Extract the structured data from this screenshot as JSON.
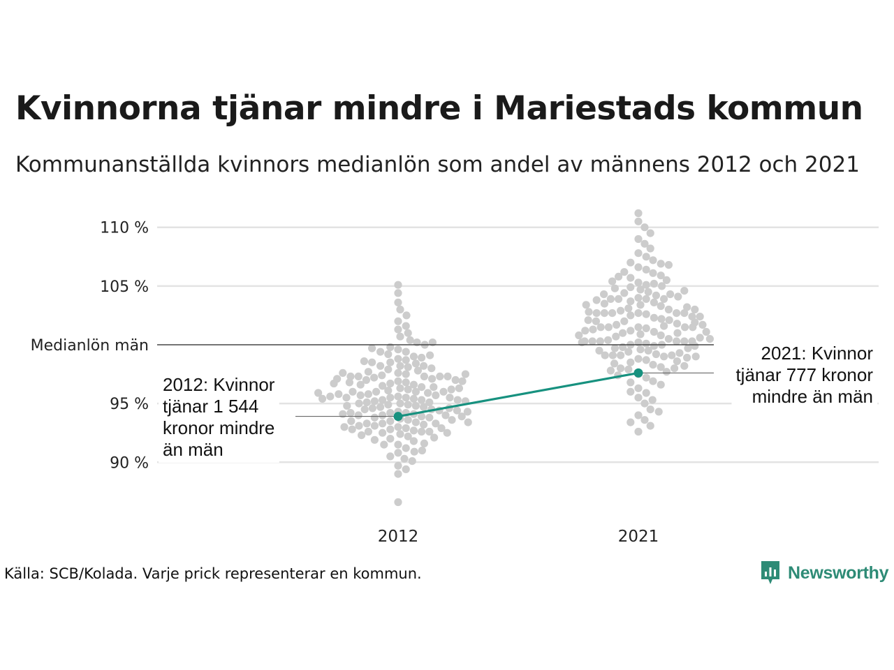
{
  "title": "Kvinnorna tjänar mindre i Mariestads kommun",
  "subtitle": "Kommunanställda kvinnors medianlön som andel av männens 2012 och 2021",
  "source": "Källa: SCB/Kolada. Varje prick representerar en kommun.",
  "brand": "Newsworthy",
  "colors": {
    "highlight": "#17917f",
    "dots": "#cccccc",
    "grid": "#e3e3e3",
    "reference": "#222222",
    "brand": "#2e8b76"
  },
  "chart_data": {
    "type": "scatter",
    "subtype": "beeswarm",
    "categories": [
      "2012",
      "2021"
    ],
    "y_ticks": [
      {
        "value": 90,
        "label": "90 %"
      },
      {
        "value": 95,
        "label": "95 %"
      },
      {
        "value": 100,
        "label": "Medianlön män"
      },
      {
        "value": 105,
        "label": "105 %"
      },
      {
        "value": 110,
        "label": "110 %"
      }
    ],
    "ylim": [
      86,
      111.5
    ],
    "reference_line": {
      "value": 100,
      "label": "Medianlön män"
    },
    "highlight": {
      "name": "Mariestads kommun",
      "values": [
        {
          "x": "2012",
          "y": 93.9
        },
        {
          "x": "2021",
          "y": 97.6
        }
      ]
    },
    "annotations": [
      {
        "x": "2012",
        "lines": [
          "2012: Kvinnor",
          "tjänar 1 544",
          "kronor mindre",
          "än män"
        ]
      },
      {
        "x": "2021",
        "lines": [
          "2021: Kvinnor",
          "tjänar 777 kronor",
          "mindre än män"
        ]
      }
    ],
    "series": [
      {
        "category": "2012",
        "values": [
          105.1,
          104.4,
          103.6,
          103.0,
          102.5,
          102.0,
          101.6,
          101.3,
          101.0,
          100.7,
          100.4,
          100.2,
          100.0,
          99.8,
          99.6,
          99.4,
          99.2,
          99.0,
          98.8,
          98.7,
          98.5,
          98.4,
          98.2,
          98.1,
          97.9,
          97.8,
          97.6,
          97.5,
          97.4,
          97.3,
          97.2,
          97.1,
          97.0,
          96.9,
          96.8,
          96.7,
          96.6,
          96.5,
          96.4,
          96.3,
          96.2,
          96.1,
          96.0,
          96.0,
          95.9,
          95.8,
          95.7,
          95.7,
          95.6,
          95.5,
          95.5,
          95.4,
          95.3,
          95.3,
          95.2,
          95.1,
          95.1,
          95.0,
          94.9,
          94.9,
          94.8,
          94.7,
          94.7,
          94.6,
          94.5,
          94.5,
          94.4,
          94.3,
          94.2,
          94.2,
          94.1,
          94.0,
          93.9,
          93.8,
          93.8,
          93.7,
          93.6,
          93.5,
          93.4,
          93.3,
          93.2,
          93.1,
          93.0,
          92.9,
          92.8,
          92.7,
          92.5,
          92.4,
          92.2,
          92.0,
          91.8,
          91.5,
          91.2,
          90.8,
          90.3,
          89.7,
          89.0,
          86.6,
          97.3,
          97.3,
          97.3,
          97.3,
          96.0,
          96.0,
          96.2,
          94.0,
          94.0,
          94.2,
          92.6,
          92.6,
          92.6,
          98.2,
          98.2,
          98.5,
          95.5,
          95.5,
          95.3,
          93.3,
          93.3,
          100.2,
          99.4,
          97.7,
          96.8,
          96.4,
          95.0,
          94.6,
          93.6,
          92.3,
          91.5,
          90.9,
          90.5,
          98.9,
          99.7,
          97.0,
          96.6,
          95.8,
          94.8,
          93.1,
          92.8,
          91.0,
          90.1,
          89.4,
          97.6,
          96.9,
          95.6,
          94.4,
          93.9,
          92.1,
          91.6,
          98.0,
          97.5,
          95.2,
          94.1,
          93.4,
          92.9,
          98.6,
          97.1,
          96.3,
          95.4,
          94.3,
          93.5,
          91.9,
          99.1,
          96.7,
          95.9,
          93.0,
          92.5
        ]
      },
      {
        "category": "2021",
        "values": [
          111.2,
          110.5,
          110.0,
          109.5,
          109.0,
          108.6,
          108.2,
          107.8,
          107.5,
          107.2,
          106.9,
          106.6,
          106.4,
          106.1,
          105.9,
          105.7,
          105.5,
          105.3,
          105.1,
          104.9,
          104.7,
          104.5,
          104.4,
          104.2,
          104.0,
          103.9,
          103.7,
          103.6,
          103.4,
          103.3,
          103.1,
          103.0,
          102.9,
          102.7,
          102.6,
          102.5,
          102.3,
          102.2,
          102.1,
          102.0,
          101.8,
          101.7,
          101.6,
          101.5,
          101.4,
          101.2,
          101.1,
          101.0,
          100.9,
          100.8,
          100.7,
          100.5,
          100.4,
          100.3,
          100.2,
          100.1,
          100.0,
          99.9,
          99.8,
          99.6,
          99.5,
          99.4,
          99.2,
          99.1,
          99.0,
          98.8,
          98.7,
          98.5,
          98.3,
          98.1,
          97.9,
          97.7,
          97.5,
          97.2,
          96.9,
          96.6,
          96.3,
          95.9,
          95.5,
          95.0,
          94.5,
          94.0,
          93.6,
          93.1,
          92.6,
          102.7,
          102.7,
          102.7,
          102.7,
          102.7,
          100.3,
          100.3,
          100.3,
          100.3,
          100.3,
          101.5,
          101.5,
          101.5,
          101.5,
          103.9,
          103.9,
          103.9,
          99.1,
          99.1,
          99.1,
          98.0,
          98.0,
          104.3,
          104.3,
          106.2,
          105.2,
          103.2,
          102.0,
          101.0,
          100.0,
          99.7,
          98.6,
          97.4,
          96.0,
          94.3,
          93.4,
          105.8,
          104.8,
          103.5,
          102.4,
          101.3,
          100.6,
          99.3,
          98.4,
          96.8,
          95.3,
          106.8,
          104.1,
          102.8,
          101.9,
          100.8,
          99.5,
          98.9,
          97.8,
          107.0,
          105.4,
          103.8,
          102.1,
          101.1,
          99.9,
          98.2,
          104.6,
          103.0,
          101.7,
          100.5,
          99.0,
          105.0,
          103.4,
          102.4,
          100.2,
          101.2,
          99.7
        ]
      }
    ],
    "grid": true
  }
}
